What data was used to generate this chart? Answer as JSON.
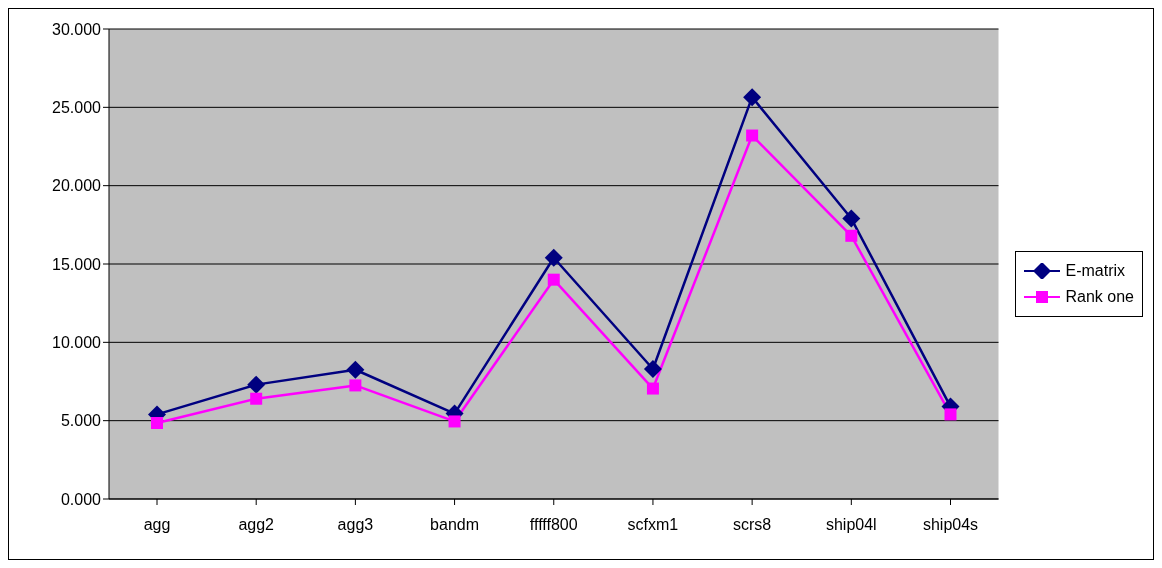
{
  "chart_data": {
    "type": "line",
    "categories": [
      "agg",
      "agg2",
      "agg3",
      "bandm",
      "fffff800",
      "scfxm1",
      "scrs8",
      "ship04l",
      "ship04s"
    ],
    "series": [
      {
        "name": "E-matrix",
        "color": "#000080",
        "marker": "diamond",
        "values": [
          5.4,
          7.3,
          8.25,
          5.45,
          15.4,
          8.3,
          25.65,
          17.9,
          5.9
        ]
      },
      {
        "name": "Rank one",
        "color": "#ff00ff",
        "marker": "square",
        "values": [
          4.85,
          6.4,
          7.25,
          4.95,
          14.0,
          7.05,
          23.2,
          16.8,
          5.4
        ]
      }
    ],
    "ylim": [
      0,
      30
    ],
    "yticks": [
      {
        "value": 0,
        "label": "0.000"
      },
      {
        "value": 5,
        "label": "5.000"
      },
      {
        "value": 10,
        "label": "10.000"
      },
      {
        "value": 15,
        "label": "15.000"
      },
      {
        "value": 20,
        "label": "20.000"
      },
      {
        "value": 25,
        "label": "25.000"
      },
      {
        "value": 30,
        "label": "30.000"
      }
    ],
    "grid": "y",
    "legend": "right"
  }
}
